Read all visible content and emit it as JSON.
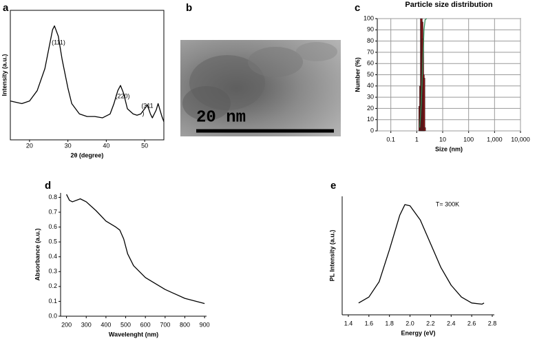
{
  "chart_data": [
    {
      "type": "line",
      "panel_label": "a",
      "xlabel": "2θ (degree)",
      "ylabel": "Intensity (a.u.)",
      "xlim": [
        15,
        55
      ],
      "xticks": [
        20,
        30,
        40,
        50
      ],
      "ylim": [
        0,
        100
      ],
      "yticks": [],
      "annotations": [
        "(111)",
        "(220)",
        "(311",
        ")"
      ],
      "series": [
        {
          "color": "#000000",
          "x": [
            15,
            18,
            20,
            22,
            24,
            25,
            26,
            26.5,
            27.5,
            28.5,
            30,
            31,
            33,
            35,
            37,
            39,
            41,
            42,
            43,
            43.7,
            44.5,
            45.5,
            47,
            48,
            49,
            50,
            50.7,
            51.5,
            52,
            53,
            53.5,
            54.5,
            55
          ],
          "values": [
            30,
            28,
            30,
            38,
            55,
            70,
            85,
            88,
            80,
            62,
            40,
            28,
            20,
            18,
            18,
            17,
            20,
            28,
            38,
            42,
            36,
            24,
            20,
            19,
            20,
            24,
            27,
            20,
            17,
            23,
            28,
            18,
            14
          ]
        }
      ]
    },
    {
      "type": "bar",
      "panel_label": "c",
      "title": "Particle size distribution",
      "xlabel": "Size (nm)",
      "ylabel": "Number (%)",
      "xscale": "log",
      "xlim": [
        0.03,
        10000
      ],
      "xticks": [
        0.1,
        1,
        10,
        100,
        {
          "value": 1000,
          "label": "1,000"
        },
        {
          "value": 10000,
          "label": "10,000"
        }
      ],
      "ylim": [
        0,
        100
      ],
      "yticks": [
        0,
        10,
        20,
        30,
        40,
        50,
        60,
        70,
        80,
        90,
        100
      ],
      "grid": true,
      "series": [
        {
          "type": "bar",
          "color": "#7b1113",
          "x": [
            1.3,
            1.4,
            1.5,
            1.6,
            1.7,
            1.8,
            1.9,
            2.0
          ],
          "values": [
            22,
            40,
            100,
            97,
            82,
            50,
            47,
            3
          ]
        },
        {
          "type": "line",
          "color": "#2e8b57",
          "x": [
            1.3,
            1.5,
            1.7,
            1.9,
            2.1,
            2.4
          ],
          "values": [
            3,
            25,
            60,
            90,
            99,
            100
          ]
        }
      ]
    },
    {
      "type": "line",
      "panel_label": "d",
      "xlabel": "Wavelenght (nm)",
      "ylabel": "Absorbance (a.u.)",
      "xlim": [
        170,
        910
      ],
      "xticks": [
        200,
        300,
        400,
        500,
        600,
        700,
        800,
        900
      ],
      "ylim": [
        0,
        0.83
      ],
      "yticks": [
        {
          "value": 0,
          "label": "0.0"
        },
        0.1,
        0.2,
        0.3,
        0.4,
        0.5,
        0.6,
        0.7,
        0.8
      ],
      "series": [
        {
          "color": "#000000",
          "x": [
            200,
            215,
            230,
            270,
            300,
            350,
            400,
            450,
            470,
            490,
            510,
            540,
            600,
            700,
            800,
            900
          ],
          "values": [
            0.82,
            0.78,
            0.77,
            0.79,
            0.77,
            0.71,
            0.64,
            0.6,
            0.58,
            0.52,
            0.42,
            0.34,
            0.26,
            0.18,
            0.12,
            0.085
          ]
        }
      ]
    },
    {
      "type": "line",
      "panel_label": "e",
      "xlabel": "Energy (eV)",
      "ylabel": "PL Intensity  (a.u.)",
      "xlim": [
        1.34,
        2.82
      ],
      "xticks": [
        1.4,
        1.6,
        1.8,
        {
          "value": 2,
          "label": "2.0"
        },
        2.2,
        2.4,
        2.6,
        2.8
      ],
      "ylim": [
        0,
        100
      ],
      "yticks": [],
      "annotations": [
        "T= 300K"
      ],
      "series": [
        {
          "color": "#000000",
          "x": [
            1.5,
            1.6,
            1.7,
            1.8,
            1.9,
            1.95,
            2.0,
            2.1,
            2.2,
            2.3,
            2.4,
            2.5,
            2.6,
            2.7,
            2.72
          ],
          "values": [
            10,
            15,
            28,
            55,
            84,
            93,
            92,
            80,
            60,
            40,
            25,
            15,
            10,
            9,
            10
          ]
        }
      ]
    }
  ],
  "image": {
    "label": "b",
    "scale_text": "20 nm"
  }
}
